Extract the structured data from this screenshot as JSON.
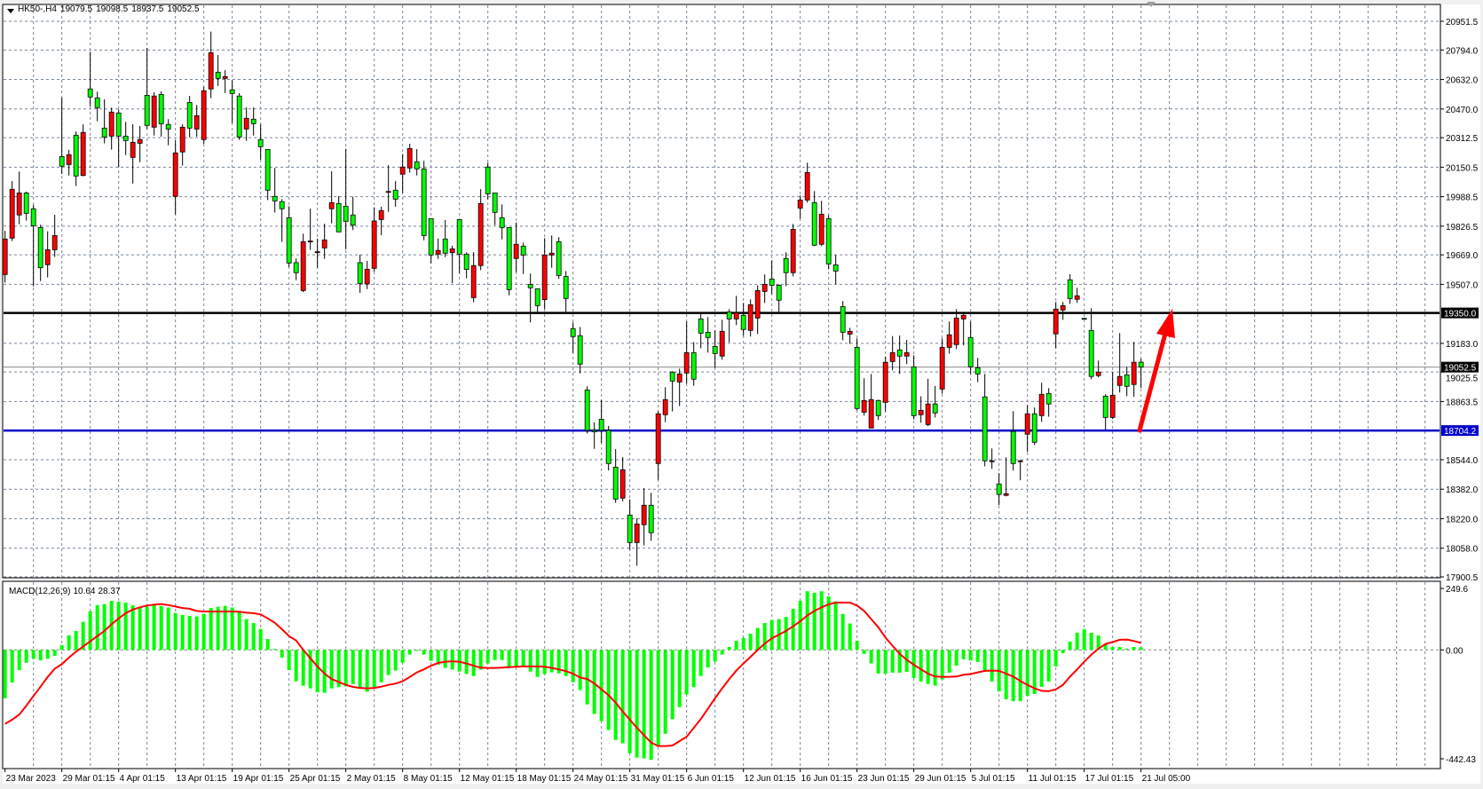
{
  "header": {
    "symbol": "HK50-,H4",
    "open": "19079.5",
    "high": "19098.5",
    "low": "18937.5",
    "close": "19052.5"
  },
  "macd_label": {
    "name": "MACD(12,26,9)",
    "main": "10.64",
    "signal": "28.37"
  },
  "colors": {
    "bull": "#ff0000",
    "bear": "#00ff00",
    "wick": "#000000",
    "grid": "#778899",
    "resistance": "#000000",
    "support": "#0000cc",
    "bid_line": "#8c8c8c",
    "histogram": "#00ff00",
    "signal_line": "#ff0000",
    "arrow": "#ff0000"
  },
  "price_axis": {
    "ticks": [
      "20951.5",
      "20794.0",
      "20632.0",
      "20470.0",
      "20312.5",
      "20150.5",
      "19988.5",
      "19826.5",
      "19669.0",
      "19507.0",
      "19183.0",
      "19025.5",
      "18863.5",
      "18544.0",
      "18382.0",
      "18220.0",
      "18058.0",
      "17900.5"
    ],
    "range": [
      17900.5,
      20951.5
    ]
  },
  "levels": {
    "resistance": "19350.0",
    "support": "18704.2",
    "current": "19052.5"
  },
  "macd_axis": {
    "top": "249.6",
    "zero": "0.00",
    "bottom": "-442.43",
    "range": [
      -442.43,
      249.6
    ]
  },
  "time_axis": [
    "23 Mar 2023",
    "29 Mar 01:15",
    "4 Apr 01:15",
    "13 Apr 01:15",
    "19 Apr 01:15",
    "25 Apr 01:15",
    "2 May 01:15",
    "8 May 01:15",
    "12 May 01:15",
    "18 May 01:15",
    "24 May 01:15",
    "31 May 01:15",
    "6 Jun 01:15",
    "12 Jun 01:15",
    "16 Jun 01:15",
    "23 Jun 01:15",
    "29 Jun 01:15",
    "5 Jul 01:15",
    "11 Jul 01:15",
    "17 Jul 01:15",
    "21 Jul 05:00"
  ],
  "chart_data": {
    "type": "candlestick",
    "timeframe": "H4",
    "ohlc_order": [
      "open",
      "high",
      "low",
      "close"
    ],
    "candles": [
      [
        19561,
        19801,
        19517,
        19756
      ],
      [
        19761,
        20074,
        19745,
        20029
      ],
      [
        19888,
        20126,
        19837,
        20009
      ],
      [
        20009,
        20016,
        19857,
        19897
      ],
      [
        19922,
        19943,
        19496,
        19829
      ],
      [
        19819,
        19834,
        19525,
        19598
      ],
      [
        19615,
        19798,
        19545,
        19697
      ],
      [
        19697,
        19889,
        19658,
        19775
      ],
      [
        20209,
        20532,
        20113,
        20156
      ],
      [
        20165,
        20245,
        20105,
        20219
      ],
      [
        20326,
        20346,
        20047,
        20102
      ],
      [
        20105,
        20386,
        20100,
        20341
      ],
      [
        20580,
        20784,
        20484,
        20536
      ],
      [
        20531,
        20565,
        20402,
        20477
      ],
      [
        20365,
        20523,
        20281,
        20316
      ],
      [
        20321,
        20477,
        20247,
        20453
      ],
      [
        20448,
        20467,
        20151,
        20321
      ],
      [
        20321,
        20399,
        20217,
        20297
      ],
      [
        20204,
        20386,
        20061,
        20287
      ],
      [
        20282,
        20376,
        20178,
        20302
      ],
      [
        20545,
        20805,
        20360,
        20380
      ],
      [
        20370,
        20562,
        20324,
        20541
      ],
      [
        20550,
        20567,
        20318,
        20389
      ],
      [
        20385,
        20414,
        20271,
        20360
      ],
      [
        19990,
        20297,
        19891,
        20229
      ],
      [
        20234,
        20386,
        20159,
        20370
      ],
      [
        20506,
        20542,
        20315,
        20365
      ],
      [
        20360,
        20492,
        20318,
        20433
      ],
      [
        20302,
        20591,
        20279,
        20570
      ],
      [
        20580,
        20895,
        20529,
        20779
      ],
      [
        20672,
        20766,
        20597,
        20638
      ],
      [
        20638,
        20683,
        20558,
        20648
      ],
      [
        20575,
        20628,
        20393,
        20555
      ],
      [
        20541,
        20557,
        20300,
        20316
      ],
      [
        20360,
        20479,
        20295,
        20419
      ],
      [
        20414,
        20479,
        20324,
        20389
      ],
      [
        20302,
        20386,
        20191,
        20263
      ],
      [
        20248,
        20248,
        19970,
        20024
      ],
      [
        19990,
        20146,
        19902,
        19965
      ],
      [
        19961,
        19975,
        19740,
        19922
      ],
      [
        19873,
        19936,
        19602,
        19624
      ],
      [
        19626,
        19650,
        19530,
        19571
      ],
      [
        19473,
        19785,
        19464,
        19741
      ],
      [
        19745,
        19923,
        19696,
        19745
      ],
      [
        19686,
        19758,
        19598,
        19686
      ],
      [
        19707,
        19840,
        19647,
        19751
      ],
      [
        19922,
        20128,
        19842,
        19956
      ],
      [
        19951,
        19991,
        19795,
        19795
      ],
      [
        19936,
        20251,
        19699,
        19853
      ],
      [
        19888,
        19988,
        19805,
        19832
      ],
      [
        19626,
        19670,
        19460,
        19512
      ],
      [
        19509,
        19636,
        19481,
        19590
      ],
      [
        19595,
        19930,
        19577,
        19855
      ],
      [
        19863,
        19933,
        19777,
        19912
      ],
      [
        20017,
        20162,
        19905,
        20017
      ],
      [
        20024,
        20074,
        19933,
        19975
      ],
      [
        20112,
        20222,
        20008,
        20151
      ],
      [
        20146,
        20279,
        20121,
        20253
      ],
      [
        20180,
        20250,
        20105,
        20141
      ],
      [
        20141,
        20185,
        19749,
        19775
      ],
      [
        19868,
        19868,
        19623,
        19668
      ],
      [
        19673,
        19758,
        19647,
        19693
      ],
      [
        19756,
        19860,
        19657,
        19678
      ],
      [
        19681,
        19719,
        19514,
        19702
      ],
      [
        19863,
        19863,
        19569,
        19673
      ],
      [
        19673,
        19683,
        19540,
        19589
      ],
      [
        19434,
        19684,
        19408,
        19610
      ],
      [
        19610,
        20030,
        19585,
        19951
      ],
      [
        20151,
        20175,
        19974,
        20004
      ],
      [
        20009,
        20009,
        19832,
        19902
      ],
      [
        19873,
        19946,
        19754,
        19819
      ],
      [
        19819,
        19819,
        19447,
        19478
      ],
      [
        19649,
        19847,
        19574,
        19727
      ],
      [
        19717,
        19736,
        19564,
        19668
      ],
      [
        19506,
        19566,
        19298,
        19488
      ],
      [
        19483,
        19483,
        19355,
        19390
      ],
      [
        19423,
        19761,
        19371,
        19668
      ],
      [
        19668,
        19775,
        19598,
        19678
      ],
      [
        19741,
        19766,
        19537,
        19556
      ],
      [
        19550,
        19580,
        19356,
        19429
      ],
      [
        19264,
        19298,
        19131,
        19220
      ],
      [
        19225,
        19273,
        19018,
        19069
      ],
      [
        18927,
        18947,
        18688,
        18705
      ],
      [
        18705,
        18749,
        18604,
        18697
      ],
      [
        18766,
        18872,
        18636,
        18705
      ],
      [
        18705,
        18729,
        18485,
        18523
      ],
      [
        18503,
        18602,
        18307,
        18328
      ],
      [
        18333,
        18558,
        18315,
        18489
      ],
      [
        18240,
        18326,
        18050,
        18089
      ],
      [
        18089,
        18222,
        17962,
        18191
      ],
      [
        18187,
        18388,
        18073,
        18294
      ],
      [
        18294,
        18362,
        18099,
        18143
      ],
      [
        18523,
        18810,
        18433,
        18796
      ],
      [
        18791,
        18942,
        18750,
        18874
      ],
      [
        19025,
        19030,
        18809,
        18976
      ],
      [
        18971,
        19044,
        18838,
        19015
      ],
      [
        19020,
        19304,
        18961,
        19132
      ],
      [
        19132,
        19190,
        18950,
        18986
      ],
      [
        19317,
        19346,
        19156,
        19239
      ],
      [
        19244,
        19327,
        19132,
        19215
      ],
      [
        19166,
        19254,
        19049,
        19127
      ],
      [
        19113,
        19312,
        19093,
        19249
      ],
      [
        19356,
        19371,
        19189,
        19317
      ],
      [
        19317,
        19444,
        19283,
        19351
      ],
      [
        19337,
        19405,
        19225,
        19259
      ],
      [
        19254,
        19424,
        19220,
        19395
      ],
      [
        19322,
        19502,
        19234,
        19473
      ],
      [
        19468,
        19561,
        19405,
        19507
      ],
      [
        19536,
        19639,
        19454,
        19502
      ],
      [
        19502,
        19507,
        19356,
        19420
      ],
      [
        19649,
        19683,
        19497,
        19571
      ],
      [
        19571,
        19839,
        19551,
        19809
      ],
      [
        19926,
        19995,
        19868,
        19970
      ],
      [
        19970,
        20175,
        19956,
        20121
      ],
      [
        19956,
        20019,
        19717,
        19722
      ],
      [
        19727,
        19965,
        19717,
        19892
      ],
      [
        19868,
        19887,
        19590,
        19619
      ],
      [
        19614,
        19668,
        19507,
        19580
      ],
      [
        19385,
        19415,
        19200,
        19244
      ],
      [
        19234,
        19268,
        19181,
        19249
      ],
      [
        19161,
        19210,
        18815,
        18825
      ],
      [
        18805,
        18991,
        18786,
        18869
      ],
      [
        18718,
        19015,
        18718,
        18874
      ],
      [
        18869,
        18874,
        18762,
        18786
      ],
      [
        18859,
        19111,
        18809,
        19079
      ],
      [
        19083,
        19223,
        19035,
        19132
      ],
      [
        19147,
        19226,
        19015,
        19113
      ],
      [
        19113,
        19202,
        19069,
        19132
      ],
      [
        19054,
        19118,
        18765,
        18786
      ],
      [
        18791,
        18892,
        18747,
        18815
      ],
      [
        18737,
        18988,
        18728,
        18850
      ],
      [
        18850,
        18949,
        18776,
        18801
      ],
      [
        18932,
        19210,
        18906,
        19161
      ],
      [
        19161,
        19303,
        19127,
        19230
      ],
      [
        19176,
        19371,
        19152,
        19322
      ],
      [
        19317,
        19347,
        19171,
        19337
      ],
      [
        19215,
        19303,
        19015,
        19054
      ],
      [
        19049,
        19103,
        18970,
        19015
      ],
      [
        18889,
        19015,
        18508,
        18538
      ],
      [
        18538,
        18606,
        18494,
        18538
      ],
      [
        18411,
        18470,
        18294,
        18353
      ],
      [
        18348,
        18557,
        18343,
        18357
      ],
      [
        18699,
        18811,
        18484,
        18523
      ],
      [
        18538,
        18543,
        18431,
        18538
      ],
      [
        18684,
        18843,
        18586,
        18796
      ],
      [
        18796,
        18830,
        18625,
        18640
      ],
      [
        18786,
        18967,
        18752,
        18903
      ],
      [
        18908,
        18937,
        18780,
        18850
      ],
      [
        19235,
        19410,
        19157,
        19371
      ],
      [
        19366,
        19410,
        19312,
        19390
      ],
      [
        19532,
        19563,
        19400,
        19429
      ],
      [
        19425,
        19488,
        19405,
        19444
      ],
      [
        19320,
        19322,
        19315,
        19317
      ],
      [
        19254,
        19376,
        18986,
        19001
      ],
      [
        19006,
        19088,
        18996,
        19025
      ],
      [
        18893,
        18903,
        18708,
        18776
      ],
      [
        18776,
        19025,
        18767,
        18898
      ],
      [
        18952,
        19239,
        18913,
        19001
      ],
      [
        19010,
        19054,
        18893,
        18947
      ],
      [
        18957,
        19191,
        18889,
        19079
      ],
      [
        19079.5,
        19098.5,
        18937.5,
        19052.5
      ]
    ],
    "macd_histogram": [
      -196,
      -132,
      -82,
      -52,
      -36,
      -42,
      -36,
      -24,
      20,
      59,
      77,
      114,
      157,
      182,
      186,
      199,
      196,
      192,
      181,
      172,
      176,
      182,
      178,
      172,
      150,
      142,
      138,
      136,
      146,
      170,
      175,
      179,
      172,
      156,
      125,
      109,
      85,
      44,
      4,
      -31,
      -82,
      -127,
      -145,
      -156,
      -172,
      -174,
      -156,
      -151,
      -148,
      -138,
      -156,
      -170,
      -151,
      -131,
      -102,
      -84,
      -52,
      -19,
      -1,
      -19,
      -44,
      -60,
      -73,
      -80,
      -88,
      -98,
      -106,
      -80,
      -55,
      -41,
      -41,
      -70,
      -72,
      -70,
      -88,
      -109,
      -98,
      -91,
      -95,
      -106,
      -131,
      -163,
      -221,
      -260,
      -289,
      -325,
      -365,
      -379,
      -419,
      -437,
      -440,
      -446,
      -389,
      -340,
      -281,
      -232,
      -181,
      -151,
      -106,
      -71,
      -48,
      -19,
      12,
      37,
      49,
      66,
      89,
      109,
      121,
      125,
      134,
      167,
      199,
      238,
      232,
      238,
      217,
      197,
      146,
      107,
      37,
      -16,
      -55,
      -96,
      -96,
      -92,
      -92,
      -89,
      -114,
      -128,
      -138,
      -145,
      -120,
      -92,
      -64,
      -38,
      -43,
      -49,
      -82,
      -128,
      -168,
      -200,
      -208,
      -208,
      -186,
      -179,
      -150,
      -128,
      -67,
      -13,
      34,
      70,
      84,
      70,
      59,
      26,
      12,
      12,
      5,
      12,
      10.64
    ],
    "macd_signal": [
      -300,
      -283,
      -262,
      -226,
      -187,
      -149,
      -110,
      -76,
      -58,
      -31,
      -7,
      14,
      35,
      56,
      77,
      104,
      128,
      149,
      164,
      173,
      180,
      184,
      186,
      182,
      176,
      170,
      167,
      158,
      156,
      156,
      156,
      156,
      156,
      155,
      151,
      149,
      144,
      128,
      110,
      84,
      56,
      38,
      0,
      -34,
      -67,
      -96,
      -118,
      -130,
      -142,
      -150,
      -154,
      -156,
      -154,
      -149,
      -142,
      -137,
      -127,
      -110,
      -91,
      -79,
      -64,
      -53,
      -48,
      -46,
      -48,
      -55,
      -64,
      -72,
      -73,
      -73,
      -72,
      -70,
      -68,
      -67,
      -67,
      -67,
      -68,
      -73,
      -79,
      -86,
      -96,
      -112,
      -118,
      -136,
      -160,
      -184,
      -214,
      -250,
      -283,
      -316,
      -346,
      -376,
      -390,
      -390,
      -388,
      -370,
      -352,
      -316,
      -280,
      -238,
      -196,
      -156,
      -118,
      -84,
      -55,
      -28,
      0,
      26,
      47,
      62,
      77,
      96,
      116,
      140,
      158,
      173,
      185,
      192,
      192,
      192,
      180,
      158,
      125,
      92,
      50,
      17,
      -16,
      -40,
      -60,
      -79,
      -96,
      -108,
      -109,
      -109,
      -108,
      -101,
      -98,
      -91,
      -85,
      -84,
      -85,
      -96,
      -108,
      -126,
      -142,
      -156,
      -166,
      -167,
      -160,
      -142,
      -108,
      -79,
      -48,
      -19,
      5,
      24,
      32,
      41,
      42,
      36,
      28.37
    ],
    "grid": true
  }
}
